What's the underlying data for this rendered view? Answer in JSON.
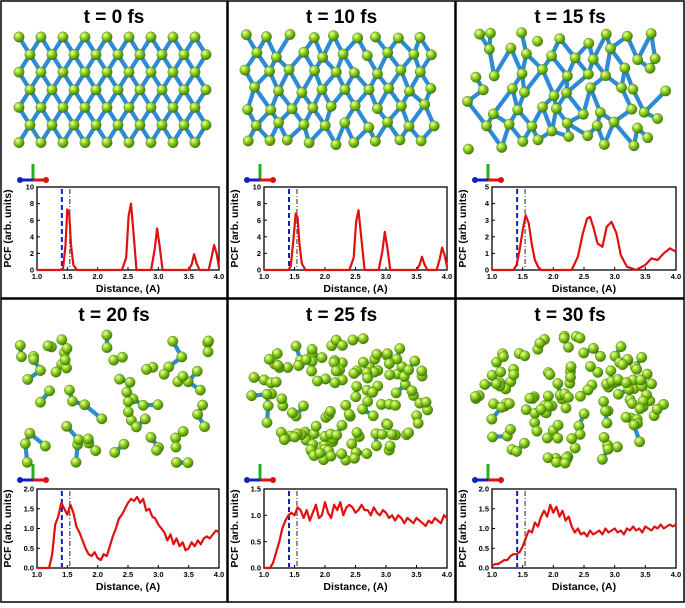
{
  "figure": {
    "panels": [
      {
        "title": "t = 0 fs",
        "structure": "crystalline",
        "seed": 3
      },
      {
        "title": "t = 10 fs",
        "structure": "slightly-distorted",
        "seed": 7
      },
      {
        "title": "t = 15 fs",
        "structure": "distorted",
        "seed": 11
      },
      {
        "title": "t = 20 fs",
        "structure": "amorphous-sparse",
        "seed": 19
      },
      {
        "title": "t = 25 fs",
        "structure": "amorphous-dense",
        "seed": 23
      },
      {
        "title": "t = 30 fs",
        "structure": "amorphous-dense",
        "seed": 29
      }
    ],
    "atom_color": "#7cc21a",
    "bond_color": "#2d8bd6",
    "curve_color": "#e01010",
    "dash_blue_color": "#1020c8",
    "dash_gray_color": "#707070",
    "axes_triad_colors": {
      "x": "#e01010",
      "y": "#20b020",
      "z": "#1020c8"
    }
  },
  "chart_data": [
    {
      "type": "line",
      "title": "t = 0 fs",
      "xlabel": "Distance, (A)",
      "ylabel": "PCF (arb. units)",
      "xlim": [
        1.0,
        4.0
      ],
      "ylim": [
        0,
        10
      ],
      "xticks": [
        "1.0",
        "1.5",
        "2.0",
        "2.5",
        "3.0",
        "3.5",
        "4.0"
      ],
      "yticks": [
        "0",
        "2",
        "4",
        "6",
        "8",
        "10"
      ],
      "vlines": [
        1.41,
        1.54
      ],
      "x": [
        1.0,
        1.38,
        1.43,
        1.47,
        1.5,
        1.53,
        1.56,
        1.6,
        1.66,
        2.4,
        2.47,
        2.51,
        2.55,
        2.59,
        2.64,
        2.88,
        2.94,
        2.98,
        3.02,
        3.07,
        3.5,
        3.55,
        3.59,
        3.63,
        3.68,
        3.83,
        3.88,
        3.92,
        3.96,
        4.0
      ],
      "y": [
        0,
        0,
        0.2,
        3.0,
        7.3,
        6.8,
        3.0,
        0.6,
        0,
        0,
        1.5,
        6.5,
        8.0,
        4.5,
        0,
        0,
        2.5,
        5.0,
        3.0,
        0,
        0,
        0.7,
        1.9,
        0.8,
        0,
        0,
        1.6,
        3.0,
        2.0,
        0.3
      ]
    },
    {
      "type": "line",
      "title": "t = 10 fs",
      "xlabel": "Distance, (A)",
      "ylabel": "PCF (arb. units)",
      "xlim": [
        1.0,
        4.0
      ],
      "ylim": [
        0,
        10
      ],
      "xticks": [
        "1.0",
        "1.5",
        "2.0",
        "2.5",
        "3.0",
        "3.5",
        "4.0"
      ],
      "yticks": [
        "0",
        "2",
        "4",
        "6",
        "8",
        "10"
      ],
      "vlines": [
        1.41,
        1.54
      ],
      "x": [
        1.0,
        1.4,
        1.44,
        1.48,
        1.52,
        1.55,
        1.58,
        1.62,
        1.68,
        2.4,
        2.47,
        2.51,
        2.55,
        2.59,
        2.65,
        2.88,
        2.94,
        2.98,
        3.02,
        3.07,
        3.5,
        3.55,
        3.59,
        3.63,
        3.68,
        3.83,
        3.88,
        3.92,
        3.96,
        4.0
      ],
      "y": [
        0,
        0,
        0.5,
        3.5,
        6.8,
        6.3,
        3.2,
        0.8,
        0,
        0,
        1.5,
        5.8,
        7.2,
        4.2,
        0,
        0,
        2.2,
        4.6,
        2.8,
        0,
        0,
        0.6,
        1.6,
        0.7,
        0,
        0,
        1.3,
        2.7,
        1.8,
        0.4
      ]
    },
    {
      "type": "line",
      "title": "t = 15 fs",
      "xlabel": "Distance, (A)",
      "ylabel": "PCF (arb. units)",
      "xlim": [
        1.0,
        4.0
      ],
      "ylim": [
        0,
        5
      ],
      "xticks": [
        "1.0",
        "1.5",
        "2.0",
        "2.5",
        "3.0",
        "3.5",
        "4.0"
      ],
      "yticks": [
        "0",
        "1",
        "2",
        "3",
        "4",
        "5"
      ],
      "vlines": [
        1.41,
        1.54
      ],
      "x": [
        1.0,
        1.35,
        1.4,
        1.45,
        1.5,
        1.55,
        1.6,
        1.65,
        1.7,
        1.75,
        1.8,
        2.3,
        2.4,
        2.48,
        2.55,
        2.6,
        2.66,
        2.72,
        2.8,
        2.87,
        2.95,
        3.03,
        3.1,
        3.2,
        3.35,
        3.5,
        3.6,
        3.7,
        3.8,
        3.9,
        4.0
      ],
      "y": [
        0,
        0,
        0.3,
        1.2,
        2.4,
        3.3,
        2.8,
        1.5,
        0.6,
        0.2,
        0,
        0,
        0.8,
        2.2,
        3.1,
        3.2,
        2.5,
        1.6,
        1.4,
        2.6,
        2.9,
        2.2,
        0.9,
        0.2,
        0,
        0.3,
        0.7,
        0.6,
        1.0,
        1.3,
        1.1
      ]
    },
    {
      "type": "line",
      "title": "t = 20 fs",
      "xlabel": "Distance, (A)",
      "ylabel": "PCF (arb. units)",
      "xlim": [
        1.0,
        4.0
      ],
      "ylim": [
        0,
        2
      ],
      "xticks": [
        "1.0",
        "1.5",
        "2.0",
        "2.5",
        "3.0",
        "3.5",
        "4.0"
      ],
      "yticks": [
        "0.0",
        "0.5",
        "1.0",
        "1.5",
        "2.0"
      ],
      "vlines": [
        1.41,
        1.54
      ],
      "x": [
        1.0,
        1.2,
        1.25,
        1.3,
        1.35,
        1.4,
        1.45,
        1.5,
        1.55,
        1.6,
        1.65,
        1.7,
        1.75,
        1.8,
        1.85,
        1.9,
        1.95,
        2.0,
        2.05,
        2.1,
        2.15,
        2.2,
        2.25,
        2.3,
        2.35,
        2.4,
        2.45,
        2.5,
        2.55,
        2.6,
        2.65,
        2.7,
        2.75,
        2.8,
        2.85,
        2.9,
        2.95,
        3.0,
        3.05,
        3.1,
        3.15,
        3.2,
        3.25,
        3.3,
        3.35,
        3.4,
        3.45,
        3.5,
        3.55,
        3.6,
        3.65,
        3.7,
        3.75,
        3.8,
        3.85,
        3.9,
        3.95,
        4.0
      ],
      "y": [
        0,
        0,
        0.35,
        1.1,
        1.3,
        1.65,
        1.5,
        1.35,
        1.6,
        1.4,
        1.05,
        0.9,
        0.7,
        0.5,
        0.35,
        0.3,
        0.4,
        0.25,
        0.2,
        0.35,
        0.3,
        0.55,
        0.8,
        1.0,
        1.25,
        1.35,
        1.5,
        1.65,
        1.75,
        1.7,
        1.8,
        1.65,
        1.75,
        1.45,
        1.5,
        1.3,
        1.25,
        1.1,
        1.0,
        0.9,
        0.7,
        0.85,
        0.6,
        0.75,
        0.55,
        0.65,
        0.45,
        0.5,
        0.65,
        0.55,
        0.7,
        0.6,
        0.75,
        0.8,
        0.75,
        0.85,
        0.95,
        0.9
      ]
    },
    {
      "type": "line",
      "title": "t = 25 fs",
      "xlabel": "Distance, (A)",
      "ylabel": "PCF (arb. units)",
      "xlim": [
        1.0,
        4.0
      ],
      "ylim": [
        0,
        1.5
      ],
      "xticks": [
        "1.0",
        "1.5",
        "2.0",
        "2.5",
        "3.0",
        "3.5",
        "4.0"
      ],
      "yticks": [
        "0.0",
        "0.5",
        "1.0",
        "1.5"
      ],
      "vlines": [
        1.41,
        1.54
      ],
      "x": [
        1.0,
        1.1,
        1.15,
        1.2,
        1.25,
        1.3,
        1.35,
        1.4,
        1.45,
        1.5,
        1.55,
        1.6,
        1.65,
        1.7,
        1.75,
        1.8,
        1.85,
        1.9,
        1.95,
        2.0,
        2.05,
        2.1,
        2.15,
        2.2,
        2.25,
        2.3,
        2.35,
        2.4,
        2.45,
        2.5,
        2.55,
        2.6,
        2.65,
        2.7,
        2.75,
        2.8,
        2.85,
        2.9,
        2.95,
        3.0,
        3.05,
        3.1,
        3.15,
        3.2,
        3.25,
        3.3,
        3.35,
        3.4,
        3.45,
        3.5,
        3.55,
        3.6,
        3.65,
        3.7,
        3.75,
        3.8,
        3.85,
        3.9,
        3.95,
        4.0
      ],
      "y": [
        0,
        0,
        0.1,
        0.3,
        0.5,
        0.75,
        0.9,
        1.0,
        1.05,
        1.0,
        1.15,
        1.1,
        0.95,
        1.1,
        0.9,
        1.05,
        1.2,
        0.95,
        1.0,
        1.25,
        1.05,
        0.95,
        1.2,
        1.1,
        1.25,
        1.0,
        1.15,
        1.2,
        1.15,
        1.05,
        1.1,
        1.2,
        1.1,
        1.1,
        1.0,
        1.15,
        1.05,
        1.0,
        1.1,
        1.05,
        0.95,
        1.0,
        0.9,
        1.0,
        0.95,
        0.85,
        0.95,
        0.9,
        0.85,
        0.95,
        0.9,
        0.85,
        0.8,
        0.9,
        0.85,
        0.95,
        0.9,
        0.85,
        1.0,
        0.95
      ]
    },
    {
      "type": "line",
      "title": "t = 30 fs",
      "xlabel": "Distance, (A)",
      "ylabel": "PCF (arb. units)",
      "xlim": [
        1.0,
        4.0
      ],
      "ylim": [
        0,
        2
      ],
      "xticks": [
        "1.0",
        "1.5",
        "2.0",
        "2.5",
        "3.0",
        "3.5",
        "4.0"
      ],
      "yticks": [
        "0.0",
        "0.5",
        "1.0",
        "1.5",
        "2.0"
      ],
      "vlines": [
        1.41,
        1.54
      ],
      "x": [
        1.0,
        1.05,
        1.1,
        1.15,
        1.2,
        1.25,
        1.3,
        1.35,
        1.4,
        1.45,
        1.5,
        1.55,
        1.6,
        1.65,
        1.7,
        1.75,
        1.8,
        1.85,
        1.9,
        1.95,
        2.0,
        2.05,
        2.1,
        2.15,
        2.2,
        2.25,
        2.3,
        2.35,
        2.4,
        2.45,
        2.5,
        2.55,
        2.6,
        2.65,
        2.7,
        2.75,
        2.8,
        2.85,
        2.9,
        2.95,
        3.0,
        3.05,
        3.1,
        3.15,
        3.2,
        3.25,
        3.3,
        3.35,
        3.4,
        3.45,
        3.5,
        3.55,
        3.6,
        3.65,
        3.7,
        3.75,
        3.8,
        3.85,
        3.9,
        3.95,
        4.0
      ],
      "y": [
        0.05,
        0.1,
        0.1,
        0.15,
        0.2,
        0.2,
        0.3,
        0.35,
        0.35,
        0.4,
        0.55,
        0.75,
        0.95,
        0.9,
        1.15,
        1.05,
        1.3,
        1.45,
        1.3,
        1.6,
        1.4,
        1.55,
        1.3,
        1.45,
        1.2,
        1.3,
        1.05,
        0.9,
        1.0,
        0.85,
        0.9,
        0.8,
        0.95,
        0.85,
        0.9,
        0.95,
        0.85,
        1.0,
        0.9,
        0.95,
        1.0,
        0.9,
        0.95,
        0.85,
        1.0,
        0.95,
        1.05,
        0.95,
        1.0,
        0.9,
        1.05,
        1.0,
        0.95,
        1.05,
        1.0,
        1.1,
        1.0,
        1.05,
        1.1,
        1.05,
        1.1
      ]
    }
  ]
}
